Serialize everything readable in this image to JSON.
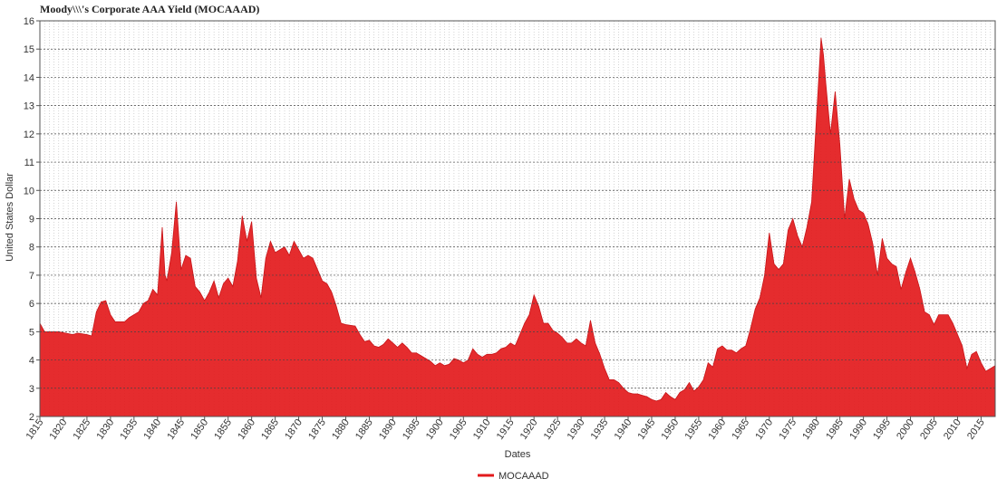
{
  "chart_data": {
    "type": "area",
    "title": "Moody\\\\\\'s Corporate AAA Yield (MOCAAAD)",
    "xlabel": "Dates",
    "ylabel": "United States Dollar",
    "xlim": [
      1815,
      2018
    ],
    "ylim": [
      2,
      16
    ],
    "yticks": [
      2,
      3,
      4,
      5,
      6,
      7,
      8,
      9,
      10,
      11,
      12,
      13,
      14,
      15,
      16
    ],
    "xticks": [
      1815,
      1820,
      1825,
      1830,
      1835,
      1840,
      1845,
      1850,
      1855,
      1860,
      1865,
      1870,
      1875,
      1880,
      1885,
      1890,
      1895,
      1900,
      1905,
      1910,
      1915,
      1920,
      1925,
      1930,
      1935,
      1940,
      1945,
      1950,
      1955,
      1960,
      1965,
      1970,
      1975,
      1980,
      1985,
      1990,
      1995,
      2000,
      2005,
      2010,
      2015
    ],
    "grid": true,
    "legend_position": "bottom",
    "series": [
      {
        "name": "MOCAAAD",
        "color": "#e31a1c",
        "points": [
          [
            1815,
            5.3
          ],
          [
            1816,
            5.0
          ],
          [
            1819,
            5.0
          ],
          [
            1822,
            4.9
          ],
          [
            1823,
            4.95
          ],
          [
            1825,
            4.9
          ],
          [
            1826,
            4.85
          ],
          [
            1827,
            5.7
          ],
          [
            1828,
            6.05
          ],
          [
            1829,
            6.1
          ],
          [
            1830,
            5.6
          ],
          [
            1831,
            5.35
          ],
          [
            1833,
            5.35
          ],
          [
            1834,
            5.5
          ],
          [
            1836,
            5.7
          ],
          [
            1837,
            6.0
          ],
          [
            1838,
            6.1
          ],
          [
            1839,
            6.5
          ],
          [
            1840,
            6.3
          ],
          [
            1841,
            8.7
          ],
          [
            1841.6,
            7.0
          ],
          [
            1842,
            6.8
          ],
          [
            1843,
            7.8
          ],
          [
            1844,
            9.6
          ],
          [
            1845,
            7.2
          ],
          [
            1846,
            7.7
          ],
          [
            1847,
            7.6
          ],
          [
            1848,
            6.6
          ],
          [
            1849,
            6.4
          ],
          [
            1850,
            6.1
          ],
          [
            1851,
            6.4
          ],
          [
            1852,
            6.8
          ],
          [
            1853,
            6.2
          ],
          [
            1854,
            6.7
          ],
          [
            1855,
            6.9
          ],
          [
            1856,
            6.6
          ],
          [
            1857,
            7.5
          ],
          [
            1858,
            9.1
          ],
          [
            1859,
            8.2
          ],
          [
            1860,
            8.9
          ],
          [
            1861,
            6.9
          ],
          [
            1862,
            6.2
          ],
          [
            1863,
            7.6
          ],
          [
            1864,
            8.2
          ],
          [
            1865,
            7.8
          ],
          [
            1866,
            7.9
          ],
          [
            1867,
            8.0
          ],
          [
            1868,
            7.7
          ],
          [
            1869,
            8.2
          ],
          [
            1870,
            7.9
          ],
          [
            1871,
            7.6
          ],
          [
            1872,
            7.7
          ],
          [
            1873,
            7.6
          ],
          [
            1874,
            7.2
          ],
          [
            1875,
            6.8
          ],
          [
            1876,
            6.7
          ],
          [
            1877,
            6.4
          ],
          [
            1878,
            5.9
          ],
          [
            1879,
            5.3
          ],
          [
            1880,
            5.25
          ],
          [
            1882,
            5.2
          ],
          [
            1883,
            4.9
          ],
          [
            1884,
            4.65
          ],
          [
            1885,
            4.7
          ],
          [
            1886,
            4.5
          ],
          [
            1887,
            4.45
          ],
          [
            1888,
            4.55
          ],
          [
            1889,
            4.75
          ],
          [
            1890,
            4.6
          ],
          [
            1891,
            4.45
          ],
          [
            1892,
            4.6
          ],
          [
            1893,
            4.45
          ],
          [
            1894,
            4.25
          ],
          [
            1895,
            4.25
          ],
          [
            1896,
            4.15
          ],
          [
            1897,
            4.05
          ],
          [
            1898,
            3.95
          ],
          [
            1899,
            3.8
          ],
          [
            1900,
            3.9
          ],
          [
            1901,
            3.8
          ],
          [
            1902,
            3.85
          ],
          [
            1903,
            4.05
          ],
          [
            1904,
            4.0
          ],
          [
            1905,
            3.9
          ],
          [
            1906,
            4.0
          ],
          [
            1907,
            4.4
          ],
          [
            1908,
            4.2
          ],
          [
            1909,
            4.1
          ],
          [
            1910,
            4.2
          ],
          [
            1911,
            4.2
          ],
          [
            1912,
            4.25
          ],
          [
            1913,
            4.4
          ],
          [
            1914,
            4.45
          ],
          [
            1915,
            4.6
          ],
          [
            1916,
            4.5
          ],
          [
            1917,
            4.9
          ],
          [
            1918,
            5.3
          ],
          [
            1919,
            5.6
          ],
          [
            1920,
            6.3
          ],
          [
            1921,
            5.9
          ],
          [
            1922,
            5.3
          ],
          [
            1923,
            5.3
          ],
          [
            1924,
            5.05
          ],
          [
            1925,
            4.95
          ],
          [
            1926,
            4.8
          ],
          [
            1927,
            4.6
          ],
          [
            1928,
            4.6
          ],
          [
            1929,
            4.75
          ],
          [
            1930,
            4.6
          ],
          [
            1931,
            4.5
          ],
          [
            1932,
            5.4
          ],
          [
            1933,
            4.6
          ],
          [
            1934,
            4.2
          ],
          [
            1935,
            3.7
          ],
          [
            1936,
            3.3
          ],
          [
            1937,
            3.3
          ],
          [
            1938,
            3.2
          ],
          [
            1939,
            3.0
          ],
          [
            1940,
            2.85
          ],
          [
            1941,
            2.8
          ],
          [
            1942,
            2.8
          ],
          [
            1943,
            2.75
          ],
          [
            1944,
            2.7
          ],
          [
            1945,
            2.6
          ],
          [
            1946,
            2.55
          ],
          [
            1947,
            2.6
          ],
          [
            1948,
            2.85
          ],
          [
            1949,
            2.7
          ],
          [
            1950,
            2.6
          ],
          [
            1951,
            2.85
          ],
          [
            1952,
            2.95
          ],
          [
            1953,
            3.2
          ],
          [
            1954,
            2.9
          ],
          [
            1955,
            3.05
          ],
          [
            1956,
            3.3
          ],
          [
            1957,
            3.9
          ],
          [
            1958,
            3.75
          ],
          [
            1959,
            4.4
          ],
          [
            1960,
            4.5
          ],
          [
            1961,
            4.35
          ],
          [
            1962,
            4.35
          ],
          [
            1963,
            4.25
          ],
          [
            1964,
            4.4
          ],
          [
            1965,
            4.5
          ],
          [
            1966,
            5.1
          ],
          [
            1967,
            5.8
          ],
          [
            1968,
            6.2
          ],
          [
            1969,
            7.0
          ],
          [
            1970,
            8.5
          ],
          [
            1971,
            7.4
          ],
          [
            1972,
            7.2
          ],
          [
            1973,
            7.4
          ],
          [
            1974,
            8.6
          ],
          [
            1975,
            9.0
          ],
          [
            1976,
            8.4
          ],
          [
            1977,
            8.0
          ],
          [
            1978,
            8.7
          ],
          [
            1979,
            9.6
          ],
          [
            1980,
            12.5
          ],
          [
            1981,
            15.4
          ],
          [
            1981.5,
            14.8
          ],
          [
            1982,
            13.8
          ],
          [
            1983,
            12.0
          ],
          [
            1984,
            13.5
          ],
          [
            1985,
            11.6
          ],
          [
            1986,
            9.0
          ],
          [
            1987,
            10.4
          ],
          [
            1988,
            9.7
          ],
          [
            1989,
            9.3
          ],
          [
            1990,
            9.2
          ],
          [
            1991,
            8.8
          ],
          [
            1992,
            8.1
          ],
          [
            1993,
            7.0
          ],
          [
            1994,
            8.3
          ],
          [
            1995,
            7.6
          ],
          [
            1996,
            7.4
          ],
          [
            1997,
            7.3
          ],
          [
            1998,
            6.5
          ],
          [
            1999,
            7.1
          ],
          [
            2000,
            7.6
          ],
          [
            2001,
            7.1
          ],
          [
            2002,
            6.5
          ],
          [
            2003,
            5.7
          ],
          [
            2004,
            5.6
          ],
          [
            2005,
            5.25
          ],
          [
            2006,
            5.6
          ],
          [
            2007,
            5.6
          ],
          [
            2008,
            5.6
          ],
          [
            2009,
            5.3
          ],
          [
            2010,
            4.9
          ],
          [
            2011,
            4.5
          ],
          [
            2012,
            3.7
          ],
          [
            2013,
            4.2
          ],
          [
            2014,
            4.3
          ],
          [
            2015,
            3.9
          ],
          [
            2016,
            3.6
          ],
          [
            2017,
            3.7
          ],
          [
            2018,
            3.8
          ]
        ]
      }
    ]
  }
}
